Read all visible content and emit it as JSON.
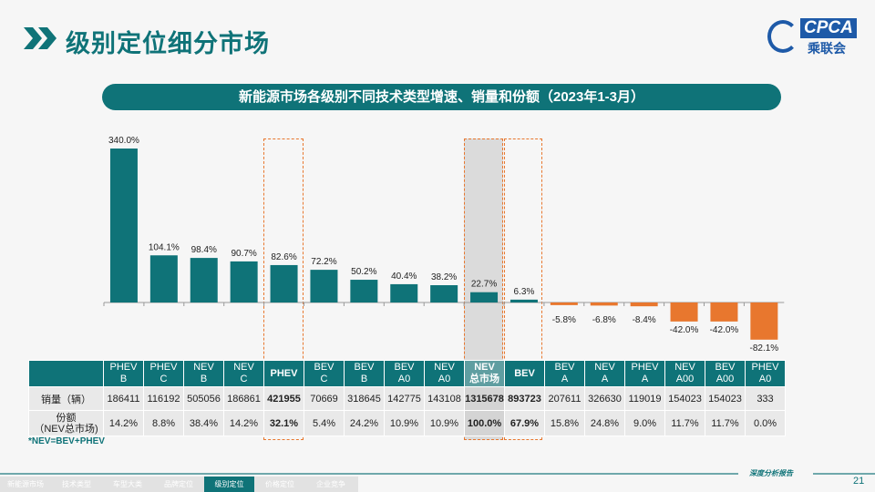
{
  "header": {
    "title": "级别定位细分市场",
    "logo_text": "CPCA",
    "logo_sub": "乘联会"
  },
  "chart_data": {
    "type": "bar",
    "title": "新能源市场各级别不同技术类型增速、销量和份额（2023年1-3月）",
    "categories": [
      "PHEV B",
      "PHEV C",
      "NEV B",
      "NEV C",
      "PHEV",
      "BEV C",
      "BEV B",
      "BEV A0",
      "NEV A0",
      "NEV 总市场",
      "BEV",
      "BEV A",
      "NEV A",
      "PHEV A",
      "NEV A00",
      "BEV A00",
      "PHEV A0"
    ],
    "values": [
      340.0,
      104.1,
      98.4,
      90.7,
      82.6,
      72.2,
      50.2,
      40.4,
      38.2,
      22.7,
      6.3,
      -5.8,
      -6.8,
      -8.4,
      -42.0,
      -42.0,
      -82.1
    ],
    "value_labels": [
      "340.0%",
      "104.1%",
      "98.4%",
      "90.7%",
      "82.6%",
      "72.2%",
      "50.2%",
      "40.4%",
      "38.2%",
      "22.7%",
      "6.3%",
      "-5.8%",
      "-6.8%",
      "-8.4%",
      "-42.0%",
      "-42.0%",
      "-82.1%"
    ],
    "positive_color": "#0f7378",
    "negative_color": "#e8772e"
  },
  "table": {
    "headers": [
      [
        "PHEV",
        "B"
      ],
      [
        "PHEV",
        "C"
      ],
      [
        "NEV",
        "B"
      ],
      [
        "NEV",
        "C"
      ],
      [
        "PHEV",
        ""
      ],
      [
        "BEV",
        "C"
      ],
      [
        "BEV",
        "B"
      ],
      [
        "BEV",
        "A0"
      ],
      [
        "NEV",
        "A0"
      ],
      [
        "NEV",
        "总市场"
      ],
      [
        "BEV",
        ""
      ],
      [
        "BEV",
        "A"
      ],
      [
        "NEV",
        "A"
      ],
      [
        "PHEV",
        "A"
      ],
      [
        "NEV",
        "A00"
      ],
      [
        "BEV",
        "A00"
      ],
      [
        "PHEV",
        "A0"
      ]
    ],
    "rows": [
      {
        "label": "销量（辆）",
        "label2": "",
        "values": [
          "186411",
          "116192",
          "505056",
          "186861",
          "421955",
          "70669",
          "318645",
          "142775",
          "143108",
          "1315678",
          "893723",
          "207611",
          "326630",
          "119019",
          "154023",
          "154023",
          "333"
        ]
      },
      {
        "label": "份额",
        "label2": "（NEV总市场)",
        "values": [
          "14.2%",
          "8.8%",
          "38.4%",
          "14.2%",
          "32.1%",
          "5.4%",
          "24.2%",
          "10.9%",
          "10.9%",
          "100.0%",
          "67.9%",
          "15.8%",
          "24.8%",
          "9.0%",
          "11.7%",
          "11.7%",
          "0.0%"
        ]
      }
    ],
    "note": "*NEV=BEV+PHEV"
  },
  "footer": {
    "tabs": [
      "新能源市场",
      "技术类型",
      "车型大类",
      "品牌定位",
      "级别定位",
      "价格定位",
      "企业竞争"
    ],
    "active_tab": "级别定位",
    "slogan": "深度分析报告",
    "page": "21"
  }
}
